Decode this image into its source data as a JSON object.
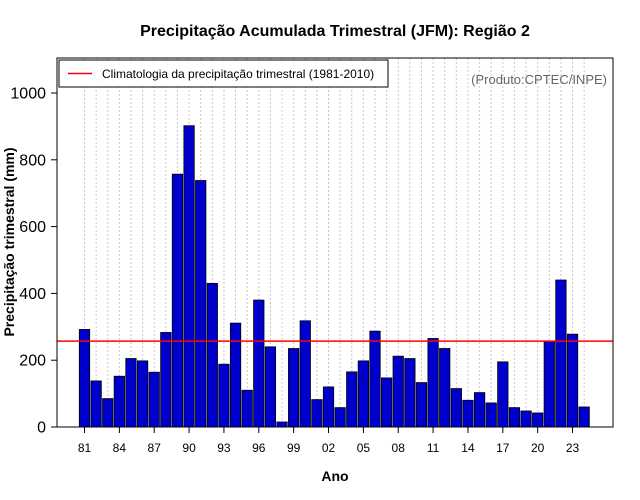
{
  "chart_data": {
    "type": "bar",
    "title": "Precipitação Acumulada Trimestral (JFM): Região 2",
    "xlabel": "Ano",
    "ylabel": "Precipitação trimestral (mm)",
    "credit": "(Produto:CPTEC/INPE)",
    "ylim": [
      0,
      1100
    ],
    "yticks": [
      0,
      200,
      400,
      600,
      800,
      1000
    ],
    "xtick_labels": [
      "81",
      "84",
      "87",
      "90",
      "93",
      "96",
      "99",
      "02",
      "05",
      "08",
      "11",
      "14",
      "17",
      "20",
      "23"
    ],
    "xtick_years": [
      1981,
      1984,
      1987,
      1990,
      1993,
      1996,
      1999,
      2002,
      2005,
      2008,
      2011,
      2014,
      2017,
      2020,
      2023
    ],
    "grid": true,
    "categories": [
      1981,
      1982,
      1983,
      1984,
      1985,
      1986,
      1987,
      1988,
      1989,
      1990,
      1991,
      1992,
      1993,
      1994,
      1995,
      1996,
      1997,
      1998,
      1999,
      2000,
      2001,
      2002,
      2003,
      2004,
      2005,
      2006,
      2007,
      2008,
      2009,
      2010,
      2011,
      2012,
      2013,
      2014,
      2015,
      2016,
      2017,
      2018,
      2019,
      2020,
      2021,
      2022,
      2023,
      2024
    ],
    "values": [
      292,
      138,
      85,
      152,
      205,
      198,
      164,
      283,
      757,
      902,
      738,
      430,
      188,
      311,
      110,
      380,
      240,
      15,
      235,
      318,
      82,
      120,
      58,
      165,
      198,
      287,
      147,
      212,
      205,
      133,
      265,
      235,
      115,
      80,
      103,
      72,
      195,
      58,
      48,
      42,
      257,
      440,
      278,
      60
    ],
    "bar_color": "#0000CD",
    "climatology": {
      "label": "Climatologia da precipitação trimestral (1981-2010)",
      "value": 257,
      "color": "#FF0000"
    },
    "legend_position": "top-left"
  }
}
